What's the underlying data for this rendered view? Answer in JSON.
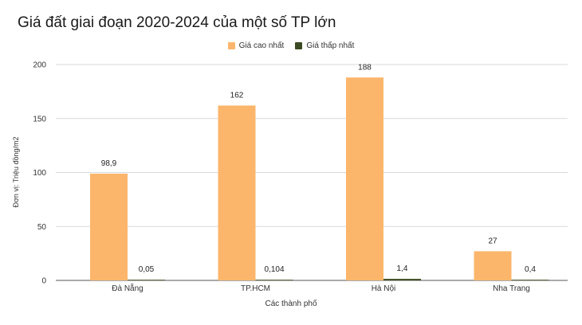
{
  "chart_data": {
    "type": "bar",
    "title": "Giá đất giai đoạn 2020-2024 của một số TP lớn",
    "xlabel": "Các thành phố",
    "ylabel": "Đơn vị: Triệu đồng/m2",
    "ylim": [
      0,
      200
    ],
    "yticks": [
      "0",
      "50",
      "100",
      "150",
      "200"
    ],
    "categories": [
      "Đà Nẵng",
      "TP.HCM",
      "Hà Nội",
      "Nha Trang"
    ],
    "series": [
      {
        "name": "Giá cao nhất",
        "color": "#fbb66c",
        "values": [
          98.9,
          162,
          188,
          27
        ],
        "labels": [
          "98,9",
          "162",
          "188",
          "27"
        ]
      },
      {
        "name": "Giá thấp nhất",
        "color": "#3b4a20",
        "values": [
          0.05,
          0.104,
          1.4,
          0.4
        ],
        "labels": [
          "0,05",
          "0,104",
          "1,4",
          "0,4"
        ]
      }
    ],
    "legend_position": "top-center",
    "grid": true
  }
}
